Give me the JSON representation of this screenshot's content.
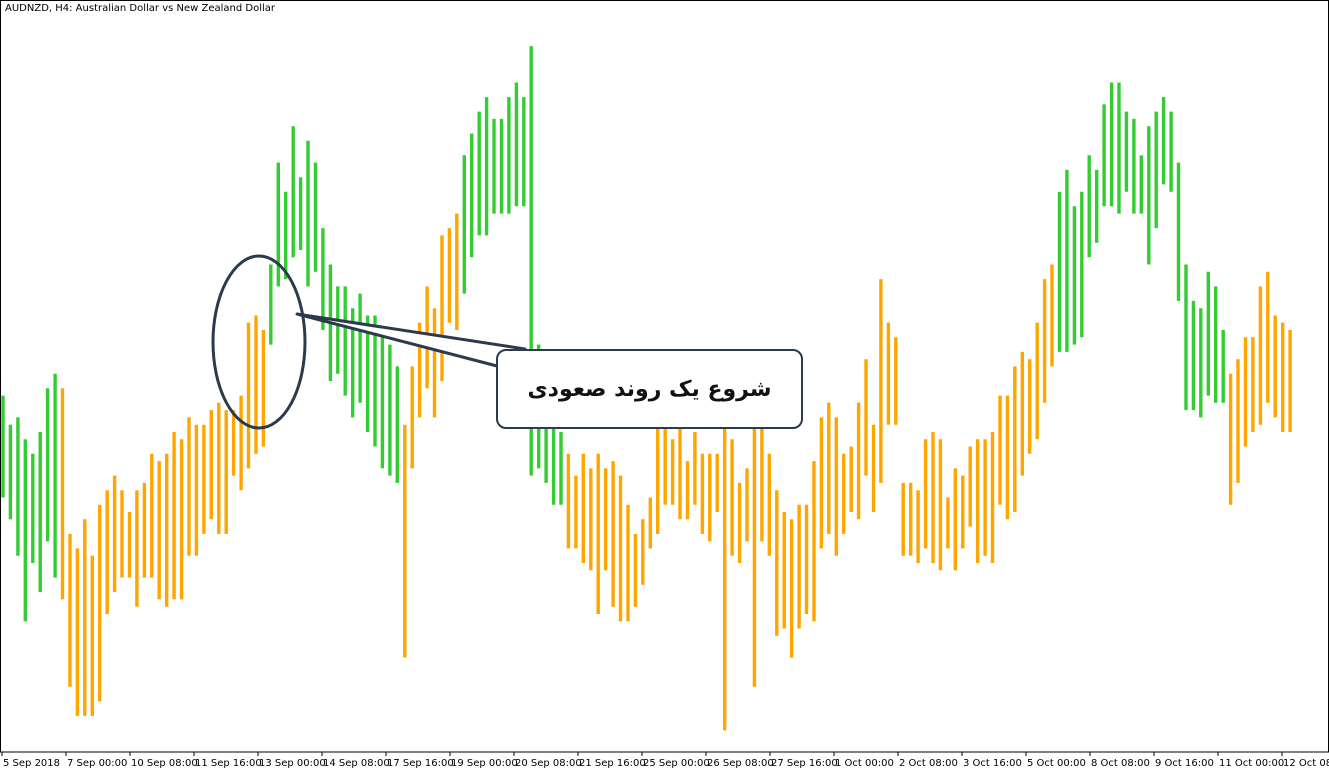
{
  "chart": {
    "title": "AUDNZD, H4:  Australian Dollar vs New Zealand Dollar"
  },
  "annotation": {
    "text": "شروع یک روند صعودی"
  },
  "colors": {
    "background": "#ffffff",
    "bullish": "#33cc33",
    "bearish": "#ffa500",
    "axis": "#000000",
    "annotation_stroke": "#2b3a4c"
  },
  "chart_data": {
    "type": "bar",
    "symbol": "AUDNZD",
    "timeframe": "H4",
    "ylim": [
      0,
      100
    ],
    "x_tick_labels": [
      "5 Sep 2018",
      "7 Sep 00:00",
      "10 Sep 08:00",
      "11 Sep 16:00",
      "13 Sep 00:00",
      "14 Sep 08:00",
      "17 Sep 16:00",
      "19 Sep 00:00",
      "20 Sep 08:00",
      "21 Sep 16:00",
      "25 Sep 00:00",
      "26 Sep 08:00",
      "27 Sep 16:00",
      "1 Oct 00:00",
      "2 Oct 08:00",
      "3 Oct 16:00",
      "5 Oct 00:00",
      "8 Oct 08:00",
      "9 Oct 16:00",
      "11 Oct 00:00",
      "12 Oct 08:00"
    ],
    "bars": [
      {
        "high": 48,
        "low": 34,
        "color": "green"
      },
      {
        "high": 44,
        "low": 31,
        "color": "green"
      },
      {
        "high": 45,
        "low": 26,
        "color": "green"
      },
      {
        "high": 42,
        "low": 17,
        "color": "green"
      },
      {
        "high": 40,
        "low": 25,
        "color": "green"
      },
      {
        "high": 43,
        "low": 21,
        "color": "green"
      },
      {
        "high": 49,
        "low": 28,
        "color": "green"
      },
      {
        "high": 51,
        "low": 23,
        "color": "green"
      },
      {
        "high": 49,
        "low": 20,
        "color": "orange"
      },
      {
        "high": 29,
        "low": 8,
        "color": "orange"
      },
      {
        "high": 27,
        "low": 4,
        "color": "orange"
      },
      {
        "high": 31,
        "low": 4,
        "color": "orange"
      },
      {
        "high": 26,
        "low": 4,
        "color": "orange"
      },
      {
        "high": 33,
        "low": 6,
        "color": "orange"
      },
      {
        "high": 35,
        "low": 18,
        "color": "orange"
      },
      {
        "high": 37,
        "low": 21,
        "color": "orange"
      },
      {
        "high": 35,
        "low": 23,
        "color": "orange"
      },
      {
        "high": 32,
        "low": 23,
        "color": "orange"
      },
      {
        "high": 35,
        "low": 19,
        "color": "orange"
      },
      {
        "high": 36,
        "low": 23,
        "color": "orange"
      },
      {
        "high": 40,
        "low": 23,
        "color": "orange"
      },
      {
        "high": 39,
        "low": 20,
        "color": "orange"
      },
      {
        "high": 40,
        "low": 19,
        "color": "orange"
      },
      {
        "high": 43,
        "low": 20,
        "color": "orange"
      },
      {
        "high": 42,
        "low": 20,
        "color": "orange"
      },
      {
        "high": 45,
        "low": 26,
        "color": "orange"
      },
      {
        "high": 44,
        "low": 26,
        "color": "orange"
      },
      {
        "high": 44,
        "low": 29,
        "color": "orange"
      },
      {
        "high": 46,
        "low": 31,
        "color": "orange"
      },
      {
        "high": 47,
        "low": 29,
        "color": "orange"
      },
      {
        "high": 46,
        "low": 29,
        "color": "orange"
      },
      {
        "high": 46,
        "low": 37,
        "color": "orange"
      },
      {
        "high": 48,
        "low": 35,
        "color": "orange"
      },
      {
        "high": 58,
        "low": 38,
        "color": "orange"
      },
      {
        "high": 59,
        "low": 40,
        "color": "orange"
      },
      {
        "high": 57,
        "low": 41,
        "color": "orange"
      },
      {
        "high": 66,
        "low": 55,
        "color": "green"
      },
      {
        "high": 80,
        "low": 63,
        "color": "green"
      },
      {
        "high": 76,
        "low": 64,
        "color": "green"
      },
      {
        "high": 85,
        "low": 67,
        "color": "green"
      },
      {
        "high": 78,
        "low": 68,
        "color": "green"
      },
      {
        "high": 83,
        "low": 63,
        "color": "green"
      },
      {
        "high": 80,
        "low": 65,
        "color": "green"
      },
      {
        "high": 71,
        "low": 57,
        "color": "green"
      },
      {
        "high": 66,
        "low": 50,
        "color": "green"
      },
      {
        "high": 63,
        "low": 51,
        "color": "green"
      },
      {
        "high": 63,
        "low": 48,
        "color": "green"
      },
      {
        "high": 60,
        "low": 45,
        "color": "green"
      },
      {
        "high": 62,
        "low": 47,
        "color": "green"
      },
      {
        "high": 59,
        "low": 43,
        "color": "green"
      },
      {
        "high": 59,
        "low": 41,
        "color": "green"
      },
      {
        "high": 56,
        "low": 38,
        "color": "green"
      },
      {
        "high": 55,
        "low": 37,
        "color": "green"
      },
      {
        "high": 52,
        "low": 36,
        "color": "green"
      },
      {
        "high": 44,
        "low": 12,
        "color": "orange"
      },
      {
        "high": 52,
        "low": 38,
        "color": "orange"
      },
      {
        "high": 58,
        "low": 45,
        "color": "orange"
      },
      {
        "high": 63,
        "low": 49,
        "color": "orange"
      },
      {
        "high": 60,
        "low": 45,
        "color": "orange"
      },
      {
        "high": 70,
        "low": 50,
        "color": "orange"
      },
      {
        "high": 71,
        "low": 58,
        "color": "orange"
      },
      {
        "high": 73,
        "low": 57,
        "color": "orange"
      },
      {
        "high": 81,
        "low": 62,
        "color": "green"
      },
      {
        "high": 84,
        "low": 67,
        "color": "green"
      },
      {
        "high": 87,
        "low": 70,
        "color": "green"
      },
      {
        "high": 89,
        "low": 70,
        "color": "green"
      },
      {
        "high": 86,
        "low": 73,
        "color": "green"
      },
      {
        "high": 86,
        "low": 73,
        "color": "green"
      },
      {
        "high": 89,
        "low": 73,
        "color": "green"
      },
      {
        "high": 91,
        "low": 74,
        "color": "green"
      },
      {
        "high": 89,
        "low": 74,
        "color": "green"
      },
      {
        "high": 96,
        "low": 37,
        "color": "green"
      },
      {
        "high": 55,
        "low": 38,
        "color": "green"
      },
      {
        "high": 47,
        "low": 36,
        "color": "green"
      },
      {
        "high": 49,
        "low": 33,
        "color": "green"
      },
      {
        "high": 43,
        "low": 33,
        "color": "green"
      },
      {
        "high": 40,
        "low": 27,
        "color": "orange"
      },
      {
        "high": 37,
        "low": 27,
        "color": "orange"
      },
      {
        "high": 40,
        "low": 25,
        "color": "orange"
      },
      {
        "high": 38,
        "low": 24,
        "color": "orange"
      },
      {
        "high": 40,
        "low": 18,
        "color": "orange"
      },
      {
        "high": 38,
        "low": 24,
        "color": "orange"
      },
      {
        "high": 39,
        "low": 19,
        "color": "orange"
      },
      {
        "high": 37,
        "low": 17,
        "color": "orange"
      },
      {
        "high": 33,
        "low": 17,
        "color": "orange"
      },
      {
        "high": 29,
        "low": 19,
        "color": "orange"
      },
      {
        "high": 31,
        "low": 22,
        "color": "orange"
      },
      {
        "high": 34,
        "low": 27,
        "color": "orange"
      },
      {
        "high": 44,
        "low": 29,
        "color": "orange"
      },
      {
        "high": 47,
        "low": 33,
        "color": "orange"
      },
      {
        "high": 42,
        "low": 33,
        "color": "orange"
      },
      {
        "high": 46,
        "low": 31,
        "color": "orange"
      },
      {
        "high": 39,
        "low": 31,
        "color": "orange"
      },
      {
        "high": 43,
        "low": 33,
        "color": "orange"
      },
      {
        "high": 40,
        "low": 29,
        "color": "orange"
      },
      {
        "high": 40,
        "low": 28,
        "color": "orange"
      },
      {
        "high": 40,
        "low": 32,
        "color": "orange"
      },
      {
        "high": 45,
        "low": 2,
        "color": "orange"
      },
      {
        "high": 42,
        "low": 26,
        "color": "orange"
      },
      {
        "high": 36,
        "low": 25,
        "color": "orange"
      },
      {
        "high": 38,
        "low": 28,
        "color": "orange"
      },
      {
        "high": 44,
        "low": 8,
        "color": "orange"
      },
      {
        "high": 44,
        "low": 28,
        "color": "orange"
      },
      {
        "high": 40,
        "low": 26,
        "color": "orange"
      },
      {
        "high": 35,
        "low": 15,
        "color": "orange"
      },
      {
        "high": 32,
        "low": 16,
        "color": "orange"
      },
      {
        "high": 31,
        "low": 12,
        "color": "orange"
      },
      {
        "high": 33,
        "low": 16,
        "color": "orange"
      },
      {
        "high": 33,
        "low": 18,
        "color": "orange"
      },
      {
        "high": 39,
        "low": 17,
        "color": "orange"
      },
      {
        "high": 45,
        "low": 27,
        "color": "orange"
      },
      {
        "high": 47,
        "low": 29,
        "color": "orange"
      },
      {
        "high": 45,
        "low": 26,
        "color": "orange"
      },
      {
        "high": 40,
        "low": 29,
        "color": "orange"
      },
      {
        "high": 41,
        "low": 32,
        "color": "orange"
      },
      {
        "high": 47,
        "low": 31,
        "color": "orange"
      },
      {
        "high": 53,
        "low": 37,
        "color": "orange"
      },
      {
        "high": 44,
        "low": 32,
        "color": "orange"
      },
      {
        "high": 64,
        "low": 36,
        "color": "orange"
      },
      {
        "high": 58,
        "low": 44,
        "color": "orange"
      },
      {
        "high": 56,
        "low": 44,
        "color": "orange"
      },
      {
        "high": 36,
        "low": 26,
        "color": "orange"
      },
      {
        "high": 36,
        "low": 26,
        "color": "orange"
      },
      {
        "high": 35,
        "low": 25,
        "color": "orange"
      },
      {
        "high": 42,
        "low": 27,
        "color": "orange"
      },
      {
        "high": 43,
        "low": 25,
        "color": "orange"
      },
      {
        "high": 42,
        "low": 24,
        "color": "orange"
      },
      {
        "high": 34,
        "low": 27,
        "color": "orange"
      },
      {
        "high": 38,
        "low": 24,
        "color": "orange"
      },
      {
        "high": 37,
        "low": 27,
        "color": "orange"
      },
      {
        "high": 41,
        "low": 30,
        "color": "orange"
      },
      {
        "high": 42,
        "low": 25,
        "color": "orange"
      },
      {
        "high": 42,
        "low": 26,
        "color": "orange"
      },
      {
        "high": 43,
        "low": 25,
        "color": "orange"
      },
      {
        "high": 48,
        "low": 33,
        "color": "orange"
      },
      {
        "high": 48,
        "low": 31,
        "color": "orange"
      },
      {
        "high": 52,
        "low": 32,
        "color": "orange"
      },
      {
        "high": 54,
        "low": 37,
        "color": "orange"
      },
      {
        "high": 53,
        "low": 40,
        "color": "orange"
      },
      {
        "high": 58,
        "low": 42,
        "color": "orange"
      },
      {
        "high": 64,
        "low": 47,
        "color": "orange"
      },
      {
        "high": 66,
        "low": 52,
        "color": "orange"
      },
      {
        "high": 76,
        "low": 54,
        "color": "green"
      },
      {
        "high": 79,
        "low": 54,
        "color": "green"
      },
      {
        "high": 74,
        "low": 55,
        "color": "green"
      },
      {
        "high": 76,
        "low": 56,
        "color": "green"
      },
      {
        "high": 81,
        "low": 67,
        "color": "green"
      },
      {
        "high": 79,
        "low": 69,
        "color": "green"
      },
      {
        "high": 88,
        "low": 74,
        "color": "green"
      },
      {
        "high": 91,
        "low": 74,
        "color": "green"
      },
      {
        "high": 91,
        "low": 73,
        "color": "green"
      },
      {
        "high": 87,
        "low": 76,
        "color": "green"
      },
      {
        "high": 86,
        "low": 73,
        "color": "green"
      },
      {
        "high": 81,
        "low": 73,
        "color": "green"
      },
      {
        "high": 85,
        "low": 66,
        "color": "green"
      },
      {
        "high": 87,
        "low": 71,
        "color": "green"
      },
      {
        "high": 89,
        "low": 77,
        "color": "green"
      },
      {
        "high": 87,
        "low": 76,
        "color": "green"
      },
      {
        "high": 80,
        "low": 61,
        "color": "green"
      },
      {
        "high": 66,
        "low": 46,
        "color": "green"
      },
      {
        "high": 61,
        "low": 46,
        "color": "green"
      },
      {
        "high": 60,
        "low": 45,
        "color": "green"
      },
      {
        "high": 65,
        "low": 48,
        "color": "green"
      },
      {
        "high": 63,
        "low": 47,
        "color": "green"
      },
      {
        "high": 57,
        "low": 47,
        "color": "green"
      },
      {
        "high": 51,
        "low": 33,
        "color": "orange"
      },
      {
        "high": 53,
        "low": 36,
        "color": "orange"
      },
      {
        "high": 56,
        "low": 41,
        "color": "orange"
      },
      {
        "high": 56,
        "low": 43,
        "color": "orange"
      },
      {
        "high": 63,
        "low": 44,
        "color": "orange"
      },
      {
        "high": 65,
        "low": 47,
        "color": "orange"
      },
      {
        "high": 59,
        "low": 45,
        "color": "orange"
      },
      {
        "high": 58,
        "low": 43,
        "color": "orange"
      },
      {
        "high": 57,
        "low": 43,
        "color": "orange"
      }
    ]
  }
}
